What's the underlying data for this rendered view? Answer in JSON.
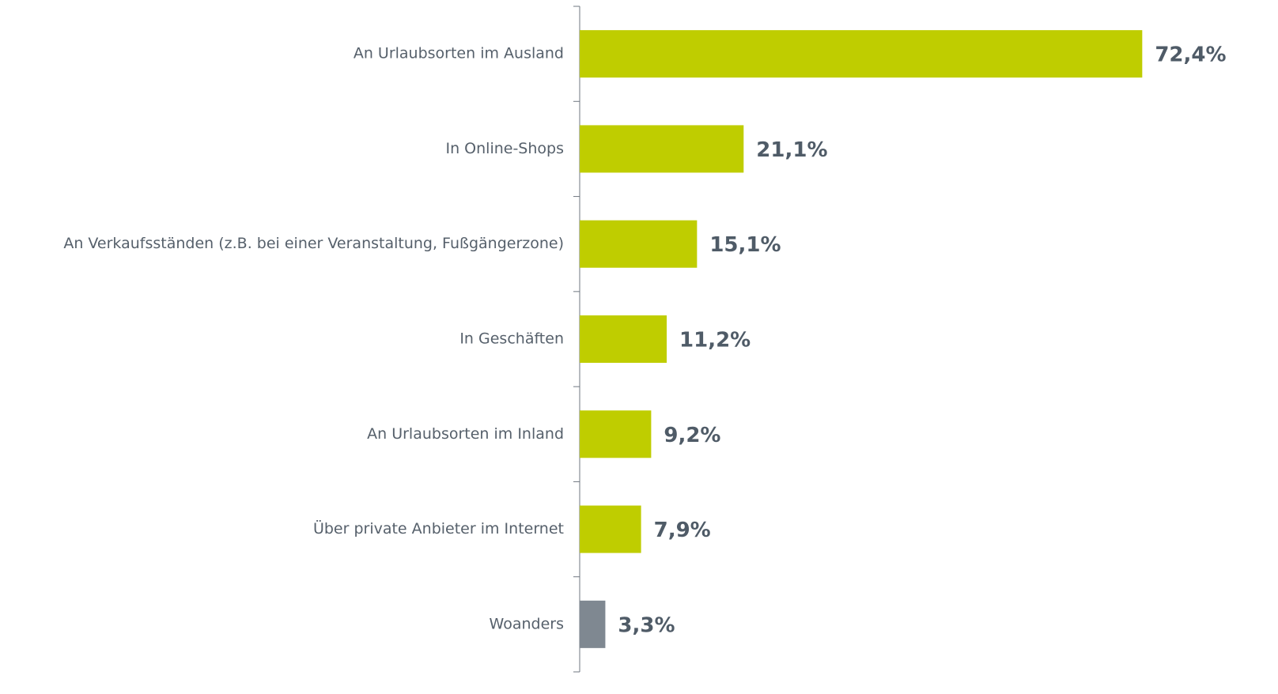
{
  "chart_data": {
    "type": "bar",
    "orientation": "horizontal",
    "categories": [
      "An Urlaubsorten im Ausland",
      "In Online-Shops",
      "An Verkaufsständen (z.B. bei einer Veranstaltung, Fußgängerzone)",
      "In Geschäften",
      "An Urlaubsorten im Inland",
      "Über private Anbieter im Internet",
      "Woanders"
    ],
    "values": [
      72.4,
      21.1,
      15.1,
      11.2,
      9.2,
      7.9,
      3.3
    ],
    "value_labels": [
      "72,4%",
      "21,1%",
      "15,1%",
      "11,2%",
      "9,2%",
      "7,9%",
      "3,3%"
    ],
    "colors": [
      "#bfcd00",
      "#bfcd00",
      "#bfcd00",
      "#bfcd00",
      "#bfcd00",
      "#bfcd00",
      "#7f8891"
    ],
    "xlim": [
      0,
      80
    ]
  }
}
